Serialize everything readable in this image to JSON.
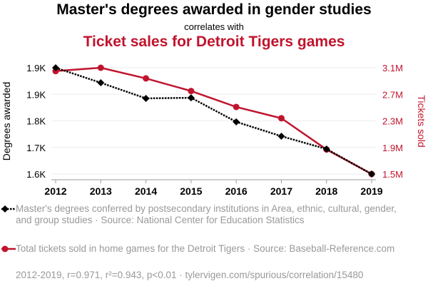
{
  "title": "Master's degrees awarded in gender studies",
  "subtitle": "correlates with",
  "title2": "Ticket sales for Detroit Tigers games",
  "chart_data": {
    "type": "line",
    "x": [
      2012,
      2013,
      2014,
      2015,
      2016,
      2017,
      2018,
      2019
    ],
    "xticks": [
      "2012",
      "2013",
      "2014",
      "2015",
      "2016",
      "2017",
      "2018",
      "2019"
    ],
    "left_axis": {
      "label": "Degrees awarded",
      "ticks": [
        1600,
        1685,
        1770,
        1855,
        1940
      ],
      "tick_labels": [
        "1.6K",
        "1.7K",
        "1.8K",
        "1.9K",
        "1.9K"
      ],
      "range": [
        1600,
        1940
      ]
    },
    "right_axis": {
      "label": "Tickets sold",
      "ticks": [
        1500000,
        1900000,
        2300000,
        2700000,
        3100000
      ],
      "tick_labels": [
        "1.5M",
        "1.9M",
        "2.3M",
        "2.7M",
        "3.1M"
      ],
      "range": [
        1500000,
        3100000
      ]
    },
    "series": [
      {
        "name": "Master's degrees conferred by postsecondary institutions in Area, ethnic, cultural, gender, and group studies · Source: National Center for Education Statistics",
        "axis": "left",
        "color": "#000000",
        "style": "dotted",
        "marker": "diamond",
        "values": [
          1940,
          1892,
          1842,
          1844,
          1767,
          1721,
          1680,
          1600
        ]
      },
      {
        "name": "Total tickets sold in home games for the Detroit Tigers · Source: Baseball-Reference.com",
        "axis": "right",
        "color": "#c0142d",
        "style": "solid",
        "marker": "circle",
        "values": [
          3050000,
          3100000,
          2940000,
          2750000,
          2510000,
          2340000,
          1870000,
          1500000
        ]
      }
    ],
    "grid": true
  },
  "footer": "2012-2019, r=0.971, r²=0.943, p<0.01 · tylervigen.com/spurious/correlation/15480"
}
